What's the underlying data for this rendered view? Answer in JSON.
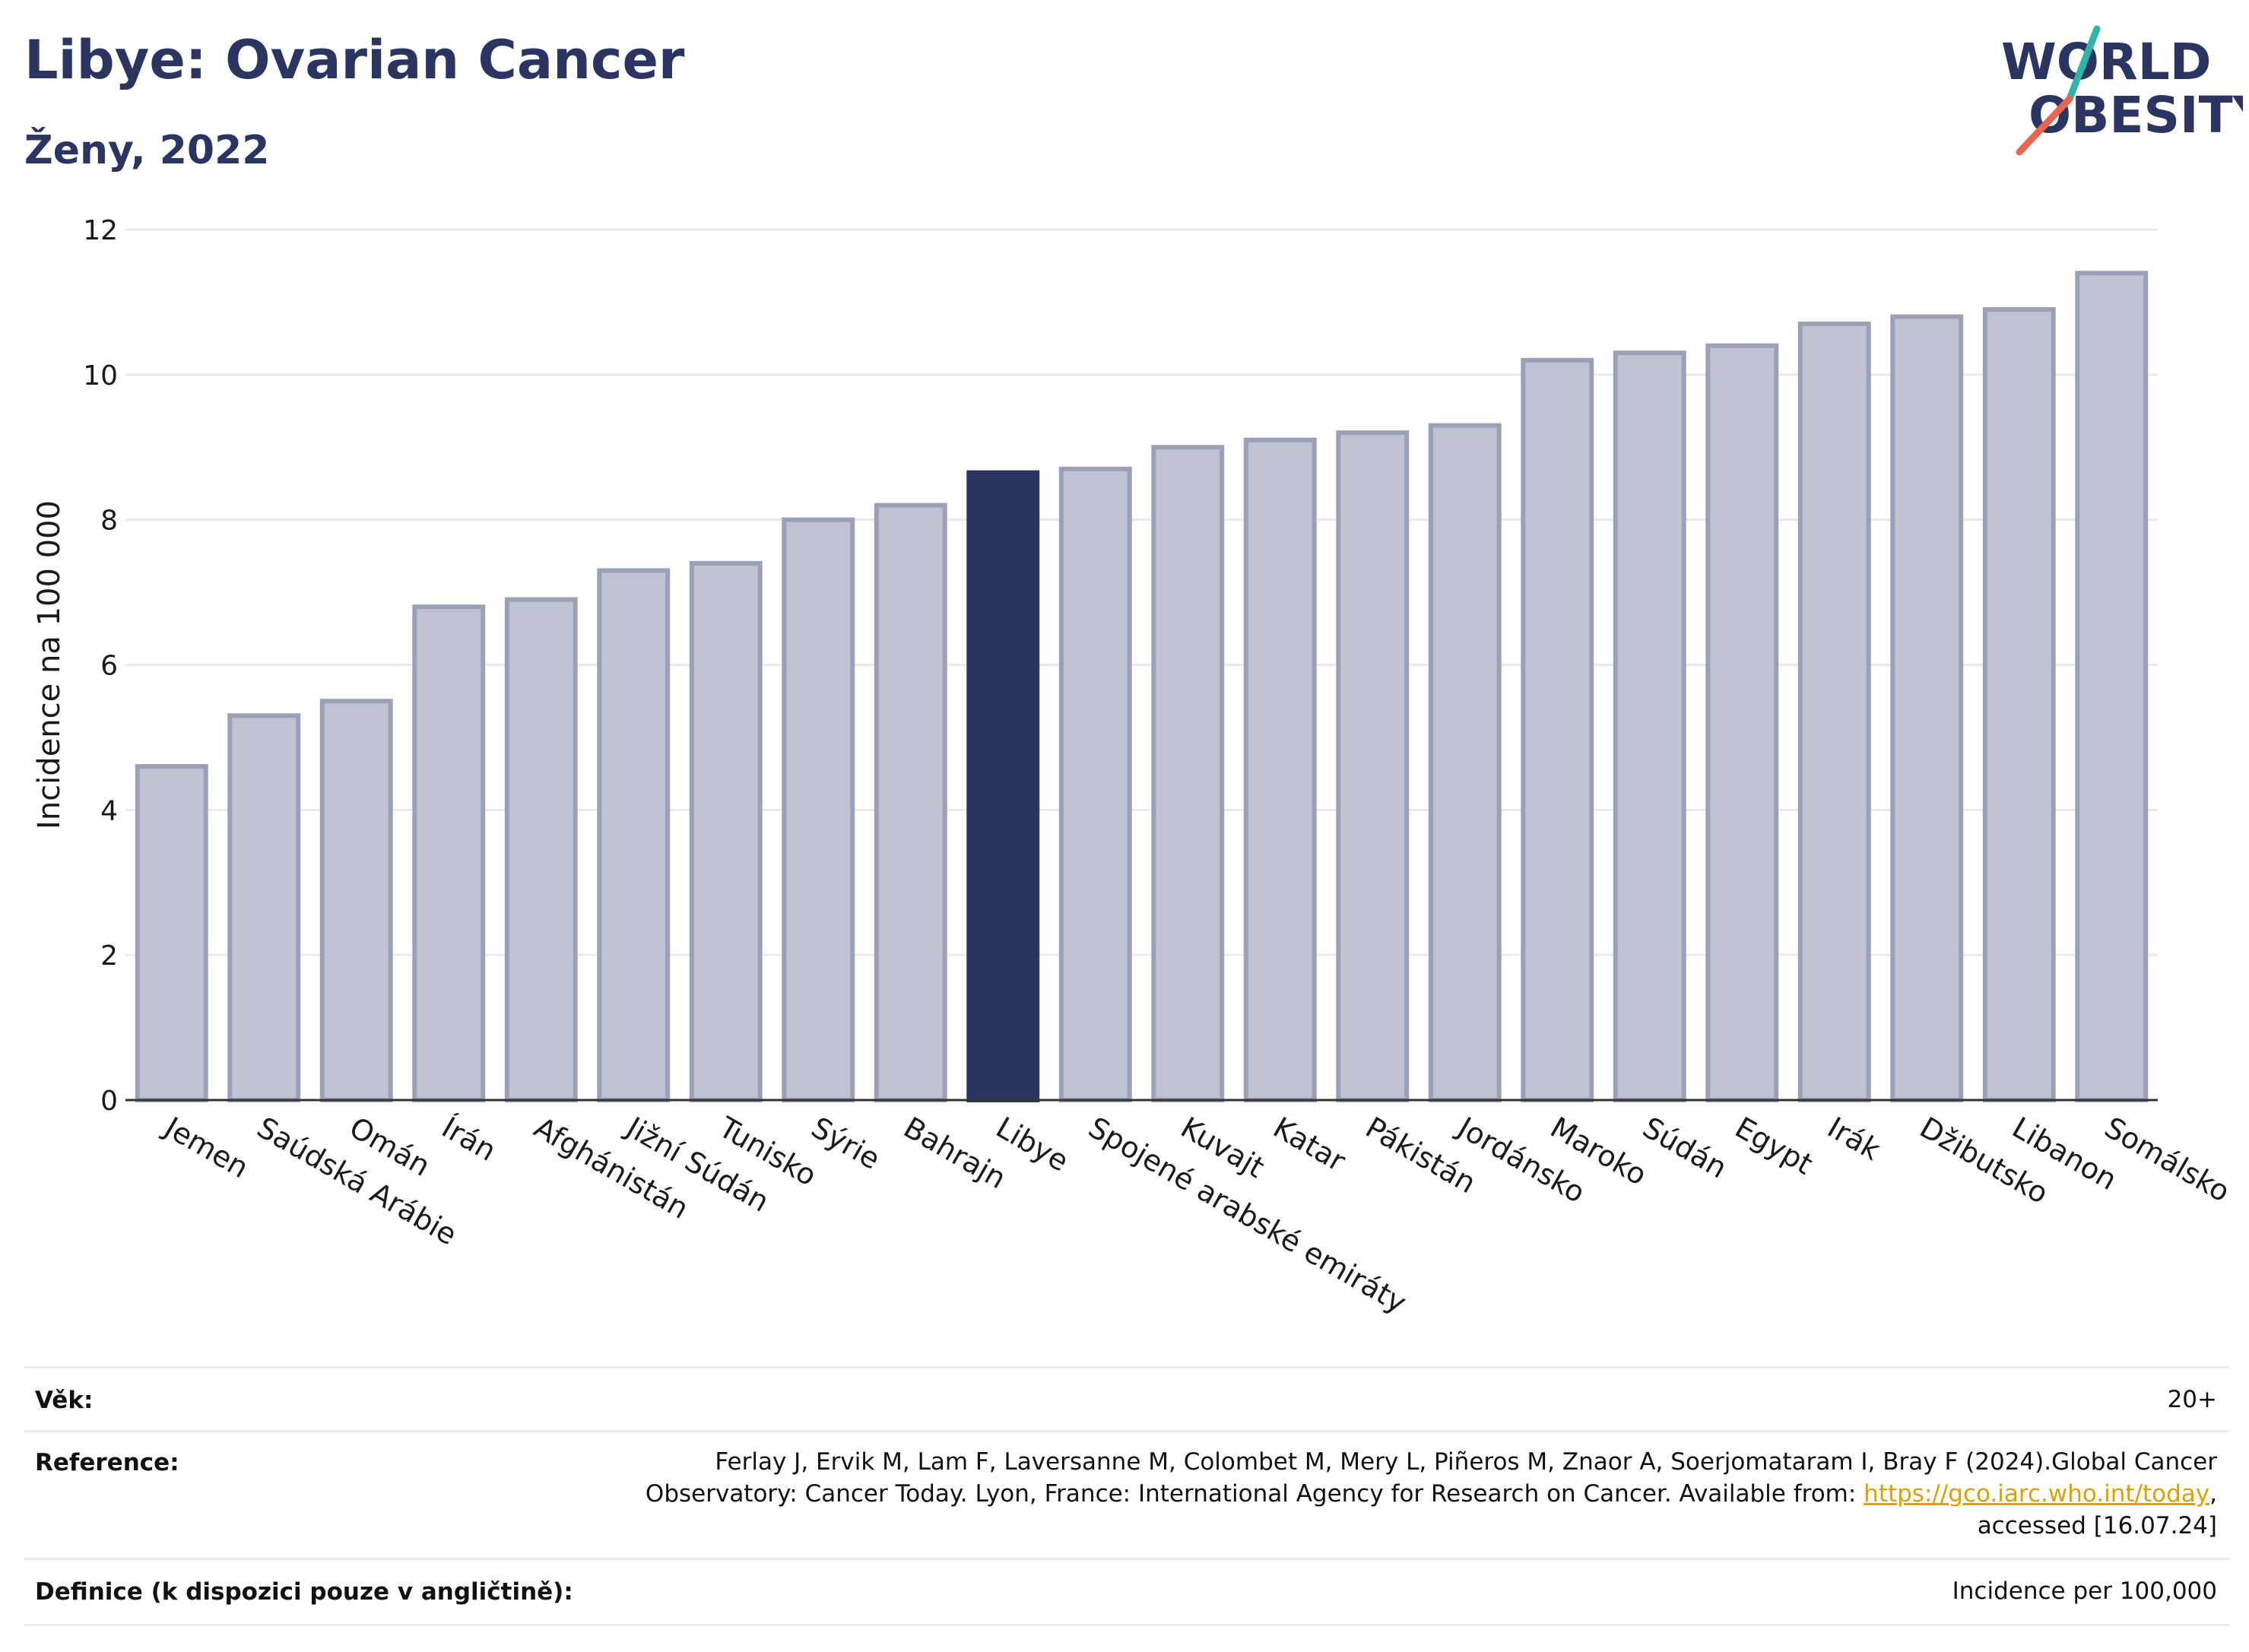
{
  "header": {
    "title": "Libye: Ovarian Cancer",
    "subtitle": "Ženy, 2022"
  },
  "logo": {
    "line1": "WORLD",
    "line2": "OBESITY",
    "colors": {
      "text": "#2b3561",
      "slash_teal": "#2fb5a8",
      "slash_coral": "#e8664f"
    }
  },
  "chart_data": {
    "type": "bar",
    "title": "",
    "xlabel": "",
    "ylabel": "Incidence na 100 000",
    "ylim": [
      0,
      12
    ],
    "yticks": [
      0,
      2,
      4,
      6,
      8,
      10,
      12
    ],
    "grid": true,
    "highlight": "Libye",
    "colors": {
      "bar": "#bfc2d0",
      "bar_border": "#9aa0b8",
      "highlight": "#2b3561"
    },
    "categories": [
      "Jemen",
      "Saúdská Arábie",
      "Omán",
      "Írán",
      "Afghánistán",
      "Jižní Súdán",
      "Tunisko",
      "Sýrie",
      "Bahrajn",
      "Libye",
      "Spojené arabské emiráty",
      "Kuvajt",
      "Katar",
      "Pákistán",
      "Jordánsko",
      "Maroko",
      "Súdán",
      "Egypt",
      "Irák",
      "Džibutsko",
      "Libanon",
      "Somálsko"
    ],
    "values": [
      4.6,
      5.3,
      5.5,
      6.8,
      6.9,
      7.3,
      7.4,
      8.0,
      8.2,
      8.65,
      8.7,
      9.0,
      9.1,
      9.2,
      9.3,
      10.2,
      10.3,
      10.4,
      10.7,
      10.8,
      10.9,
      11.4
    ]
  },
  "info": {
    "age_label": "Věk:",
    "age_value": "20+",
    "reference_label": "Reference:",
    "reference_line1": "Ferlay J, Ervik M, Lam F, Laversanne M, Colombet M, Mery L, Piñeros M, Znaor A, Soerjomataram I, Bray F (2024).Global Cancer",
    "reference_line2_pre": "Observatory: Cancer Today. Lyon, France: International Agency for Research on Cancer. Available from: ",
    "reference_link": "https://gco.iarc.who.int/today",
    "reference_line2_post": ",",
    "reference_line3": "accessed [16.07.24]",
    "definition_label": "Definice (k dispozici pouze v angličtině):",
    "definition_value": "Incidence per 100,000"
  }
}
